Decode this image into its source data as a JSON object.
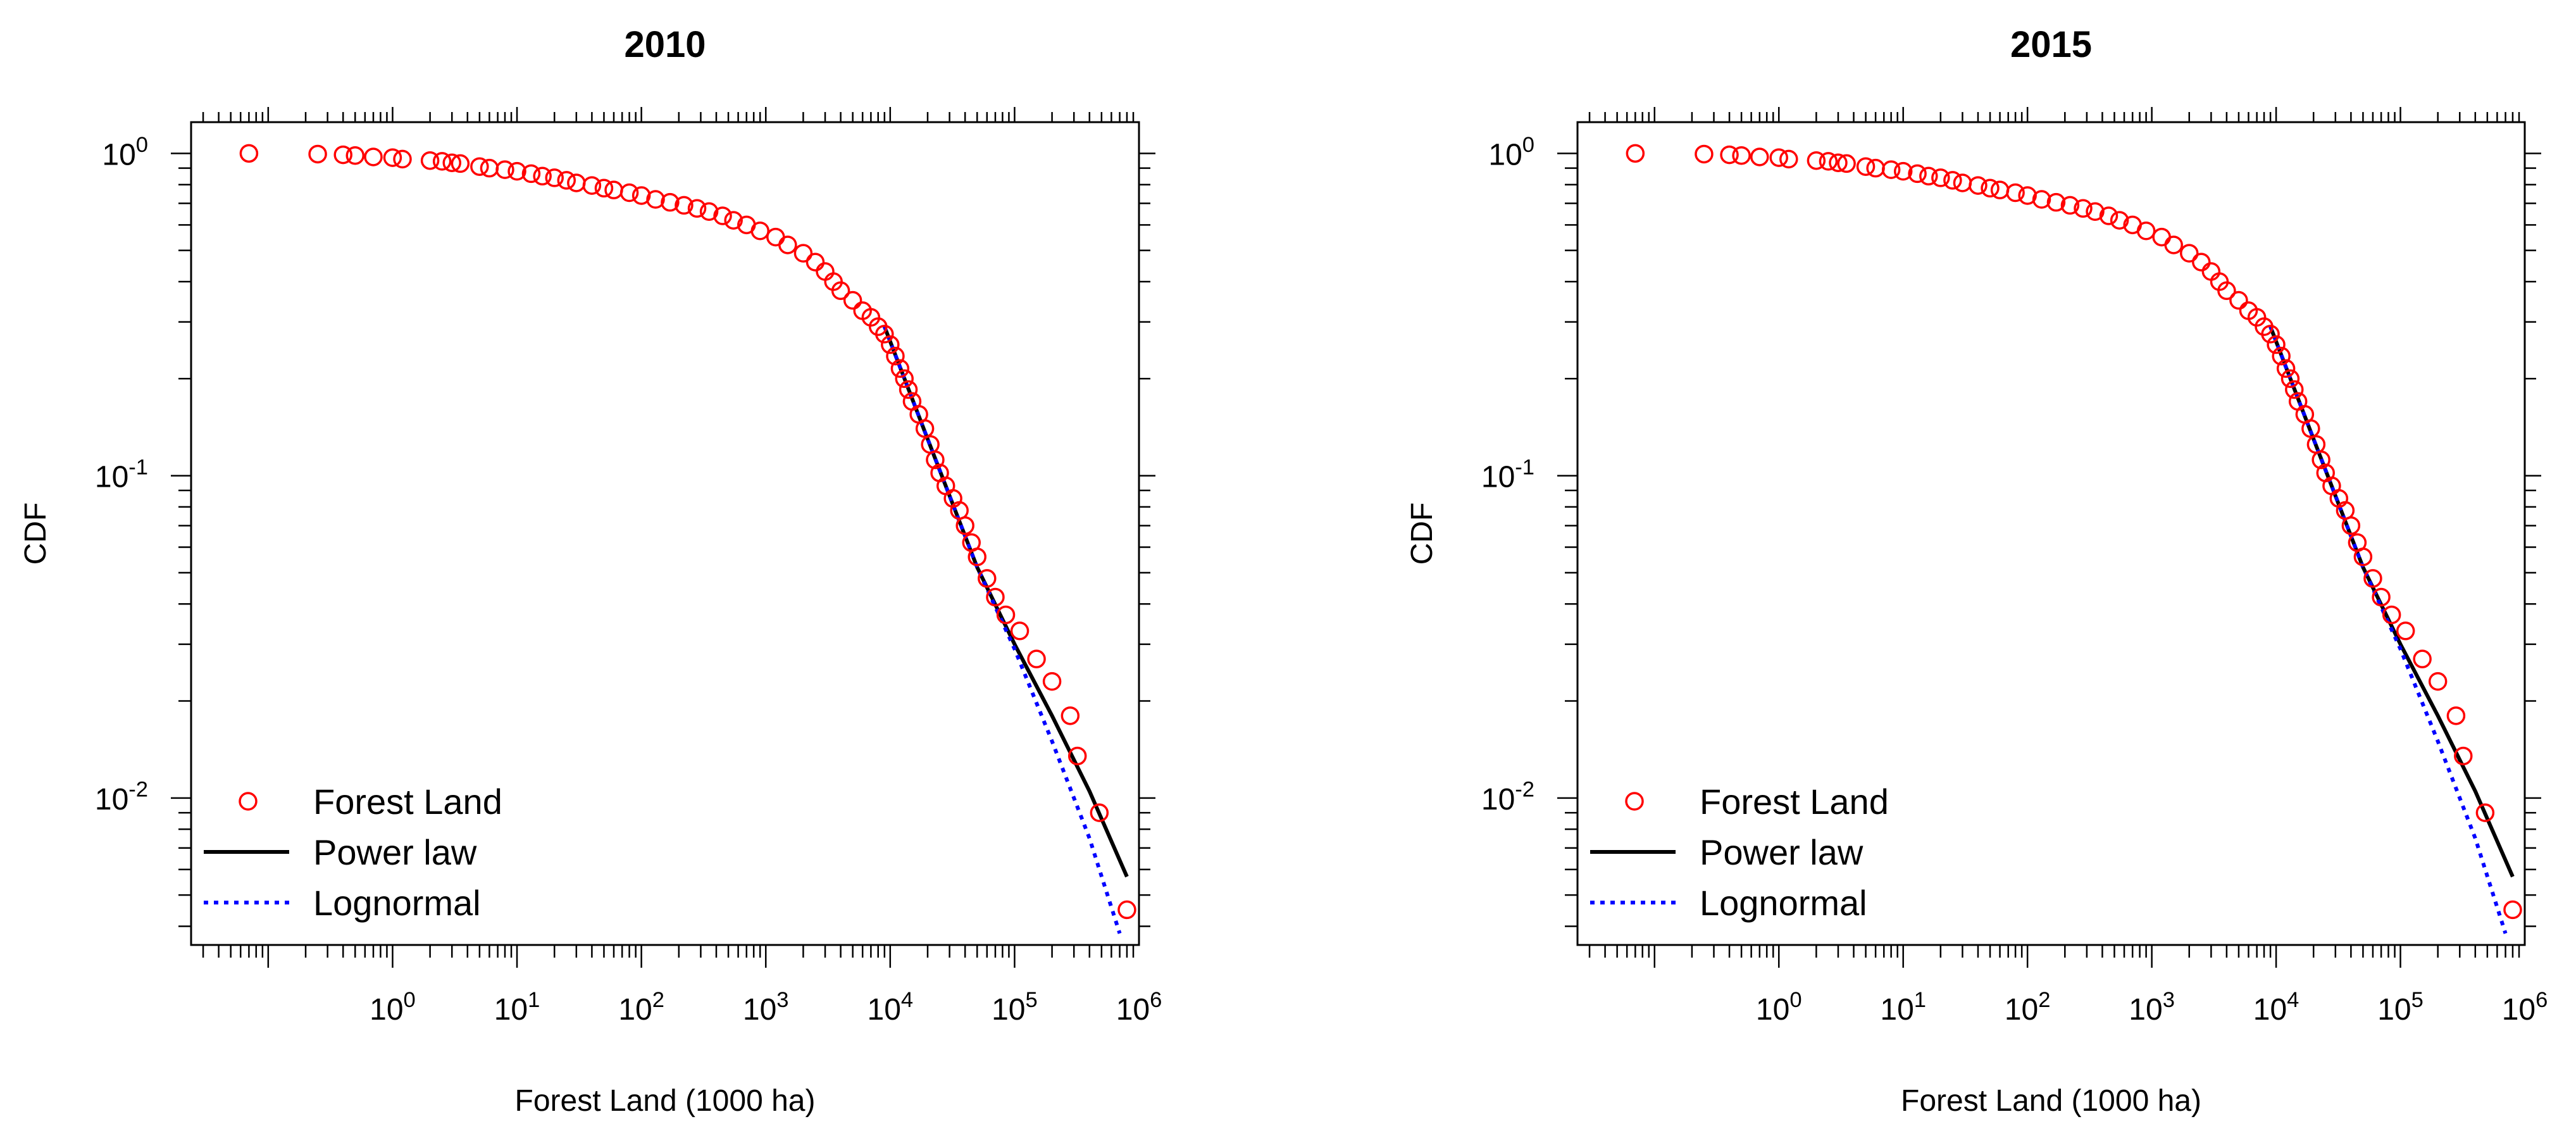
{
  "chart_data": [
    {
      "type": "scatter",
      "title": "2010",
      "xlabel": "Forest Land (1000 ha)",
      "ylabel": "CDF",
      "x_scale": "log",
      "y_scale": "log",
      "xlim": [
        0.024,
        1000000
      ],
      "ylim": [
        0.0035,
        1.25
      ],
      "x_ticks": [
        "10^0",
        "10^1",
        "10^2",
        "10^3",
        "10^4",
        "10^5",
        "10^6"
      ],
      "y_ticks": [
        "10^-2",
        "10^-1",
        "10^0"
      ],
      "legend": {
        "position": "bottom-left",
        "entries": [
          {
            "label": "Forest Land",
            "style": "red open circle"
          },
          {
            "label": "Power law",
            "style": "black solid line"
          },
          {
            "label": "Lognormal",
            "style": "blue dotted line"
          }
        ]
      },
      "series": [
        {
          "name": "Forest Land",
          "points": [
            [
              0.07,
              1.0
            ],
            [
              0.25,
              0.995
            ],
            [
              0.4,
              0.99
            ],
            [
              0.5,
              0.985
            ],
            [
              0.7,
              0.975
            ],
            [
              1.0,
              0.97
            ],
            [
              1.2,
              0.96
            ],
            [
              2.0,
              0.95
            ],
            [
              2.5,
              0.945
            ],
            [
              3.0,
              0.935
            ],
            [
              3.5,
              0.93
            ],
            [
              5,
              0.91
            ],
            [
              6,
              0.9
            ],
            [
              8,
              0.89
            ],
            [
              10,
              0.88
            ],
            [
              13,
              0.865
            ],
            [
              16,
              0.85
            ],
            [
              20,
              0.84
            ],
            [
              25,
              0.825
            ],
            [
              30,
              0.81
            ],
            [
              40,
              0.795
            ],
            [
              50,
              0.78
            ],
            [
              60,
              0.77
            ],
            [
              80,
              0.755
            ],
            [
              100,
              0.74
            ],
            [
              130,
              0.72
            ],
            [
              170,
              0.705
            ],
            [
              220,
              0.69
            ],
            [
              280,
              0.675
            ],
            [
              350,
              0.66
            ],
            [
              450,
              0.64
            ],
            [
              550,
              0.62
            ],
            [
              700,
              0.6
            ],
            [
              900,
              0.575
            ],
            [
              1200,
              0.55
            ],
            [
              1500,
              0.52
            ],
            [
              2000,
              0.49
            ],
            [
              2500,
              0.46
            ],
            [
              3000,
              0.43
            ],
            [
              3500,
              0.4
            ],
            [
              4000,
              0.375
            ],
            [
              5000,
              0.35
            ],
            [
              6000,
              0.325
            ],
            [
              7000,
              0.31
            ],
            [
              8000,
              0.29
            ],
            [
              9000,
              0.275
            ],
            [
              10000,
              0.255
            ],
            [
              11000,
              0.235
            ],
            [
              12000,
              0.215
            ],
            [
              13000,
              0.2
            ],
            [
              14000,
              0.185
            ],
            [
              15000,
              0.17
            ],
            [
              17000,
              0.155
            ],
            [
              19000,
              0.14
            ],
            [
              21000,
              0.125
            ],
            [
              23000,
              0.112
            ],
            [
              25000,
              0.102
            ],
            [
              28000,
              0.093
            ],
            [
              32000,
              0.085
            ],
            [
              36000,
              0.078
            ],
            [
              40000,
              0.07
            ],
            [
              45000,
              0.062
            ],
            [
              50000,
              0.056
            ],
            [
              60000,
              0.048
            ],
            [
              70000,
              0.042
            ],
            [
              85000,
              0.037
            ],
            [
              110000,
              0.033
            ],
            [
              150000,
              0.027
            ],
            [
              200000,
              0.023
            ],
            [
              280000,
              0.018
            ],
            [
              320000,
              0.0135
            ],
            [
              480000,
              0.009
            ],
            [
              800000,
              0.0045
            ]
          ]
        },
        {
          "name": "Power law",
          "points": [
            [
              9000,
              0.29
            ],
            [
              20000,
              0.13
            ],
            [
              50000,
              0.052
            ],
            [
              100000,
              0.03
            ],
            [
              200000,
              0.018
            ],
            [
              400000,
              0.0105
            ],
            [
              800000,
              0.0057
            ]
          ]
        },
        {
          "name": "Lognormal",
          "points": [
            [
              9000,
              0.29
            ],
            [
              20000,
              0.13
            ],
            [
              50000,
              0.052
            ],
            [
              100000,
              0.029
            ],
            [
              200000,
              0.015
            ],
            [
              400000,
              0.0075
            ],
            [
              700000,
              0.0038
            ]
          ]
        }
      ]
    },
    {
      "type": "scatter",
      "title": "2015",
      "xlabel": "Forest Land (1000 ha)",
      "ylabel": "CDF",
      "x_scale": "log",
      "y_scale": "log",
      "xlim": [
        0.024,
        1000000
      ],
      "ylim": [
        0.0035,
        1.25
      ],
      "x_ticks": [
        "10^0",
        "10^1",
        "10^2",
        "10^3",
        "10^4",
        "10^5",
        "10^6"
      ],
      "y_ticks": [
        "10^-2",
        "10^-1",
        "10^0"
      ],
      "legend": {
        "position": "bottom-left",
        "entries": [
          {
            "label": "Forest Land",
            "style": "red open circle"
          },
          {
            "label": "Power law",
            "style": "black solid line"
          },
          {
            "label": "Lognormal",
            "style": "blue dotted line"
          }
        ]
      },
      "series": [
        {
          "name": "Forest Land",
          "points": [
            [
              0.07,
              1.0
            ],
            [
              0.25,
              0.995
            ],
            [
              0.4,
              0.99
            ],
            [
              0.5,
              0.985
            ],
            [
              0.7,
              0.975
            ],
            [
              1.0,
              0.97
            ],
            [
              1.2,
              0.96
            ],
            [
              2.0,
              0.95
            ],
            [
              2.5,
              0.945
            ],
            [
              3.0,
              0.935
            ],
            [
              3.5,
              0.93
            ],
            [
              5,
              0.91
            ],
            [
              6,
              0.9
            ],
            [
              8,
              0.89
            ],
            [
              10,
              0.88
            ],
            [
              13,
              0.865
            ],
            [
              16,
              0.85
            ],
            [
              20,
              0.84
            ],
            [
              25,
              0.825
            ],
            [
              30,
              0.81
            ],
            [
              40,
              0.795
            ],
            [
              50,
              0.78
            ],
            [
              60,
              0.77
            ],
            [
              80,
              0.755
            ],
            [
              100,
              0.74
            ],
            [
              130,
              0.72
            ],
            [
              170,
              0.705
            ],
            [
              220,
              0.69
            ],
            [
              280,
              0.675
            ],
            [
              350,
              0.66
            ],
            [
              450,
              0.64
            ],
            [
              550,
              0.62
            ],
            [
              700,
              0.6
            ],
            [
              900,
              0.575
            ],
            [
              1200,
              0.55
            ],
            [
              1500,
              0.52
            ],
            [
              2000,
              0.49
            ],
            [
              2500,
              0.46
            ],
            [
              3000,
              0.43
            ],
            [
              3500,
              0.4
            ],
            [
              4000,
              0.375
            ],
            [
              5000,
              0.35
            ],
            [
              6000,
              0.325
            ],
            [
              7000,
              0.31
            ],
            [
              8000,
              0.29
            ],
            [
              9000,
              0.275
            ],
            [
              10000,
              0.255
            ],
            [
              11000,
              0.235
            ],
            [
              12000,
              0.215
            ],
            [
              13000,
              0.2
            ],
            [
              14000,
              0.185
            ],
            [
              15000,
              0.17
            ],
            [
              17000,
              0.155
            ],
            [
              19000,
              0.14
            ],
            [
              21000,
              0.125
            ],
            [
              23000,
              0.112
            ],
            [
              25000,
              0.102
            ],
            [
              28000,
              0.093
            ],
            [
              32000,
              0.085
            ],
            [
              36000,
              0.078
            ],
            [
              40000,
              0.07
            ],
            [
              45000,
              0.062
            ],
            [
              50000,
              0.056
            ],
            [
              60000,
              0.048
            ],
            [
              70000,
              0.042
            ],
            [
              85000,
              0.037
            ],
            [
              110000,
              0.033
            ],
            [
              150000,
              0.027
            ],
            [
              200000,
              0.023
            ],
            [
              280000,
              0.018
            ],
            [
              320000,
              0.0135
            ],
            [
              480000,
              0.009
            ],
            [
              800000,
              0.0045
            ]
          ]
        },
        {
          "name": "Power law",
          "points": [
            [
              9000,
              0.29
            ],
            [
              20000,
              0.13
            ],
            [
              50000,
              0.052
            ],
            [
              100000,
              0.03
            ],
            [
              200000,
              0.018
            ],
            [
              400000,
              0.0105
            ],
            [
              800000,
              0.0057
            ]
          ]
        },
        {
          "name": "Lognormal",
          "points": [
            [
              9000,
              0.29
            ],
            [
              20000,
              0.13
            ],
            [
              50000,
              0.052
            ],
            [
              100000,
              0.029
            ],
            [
              200000,
              0.015
            ],
            [
              400000,
              0.0075
            ],
            [
              700000,
              0.0038
            ]
          ]
        }
      ]
    }
  ],
  "colors": {
    "points": "#ff0000",
    "power_law": "#000000",
    "lognormal": "#0000ff",
    "axes": "#000000"
  }
}
